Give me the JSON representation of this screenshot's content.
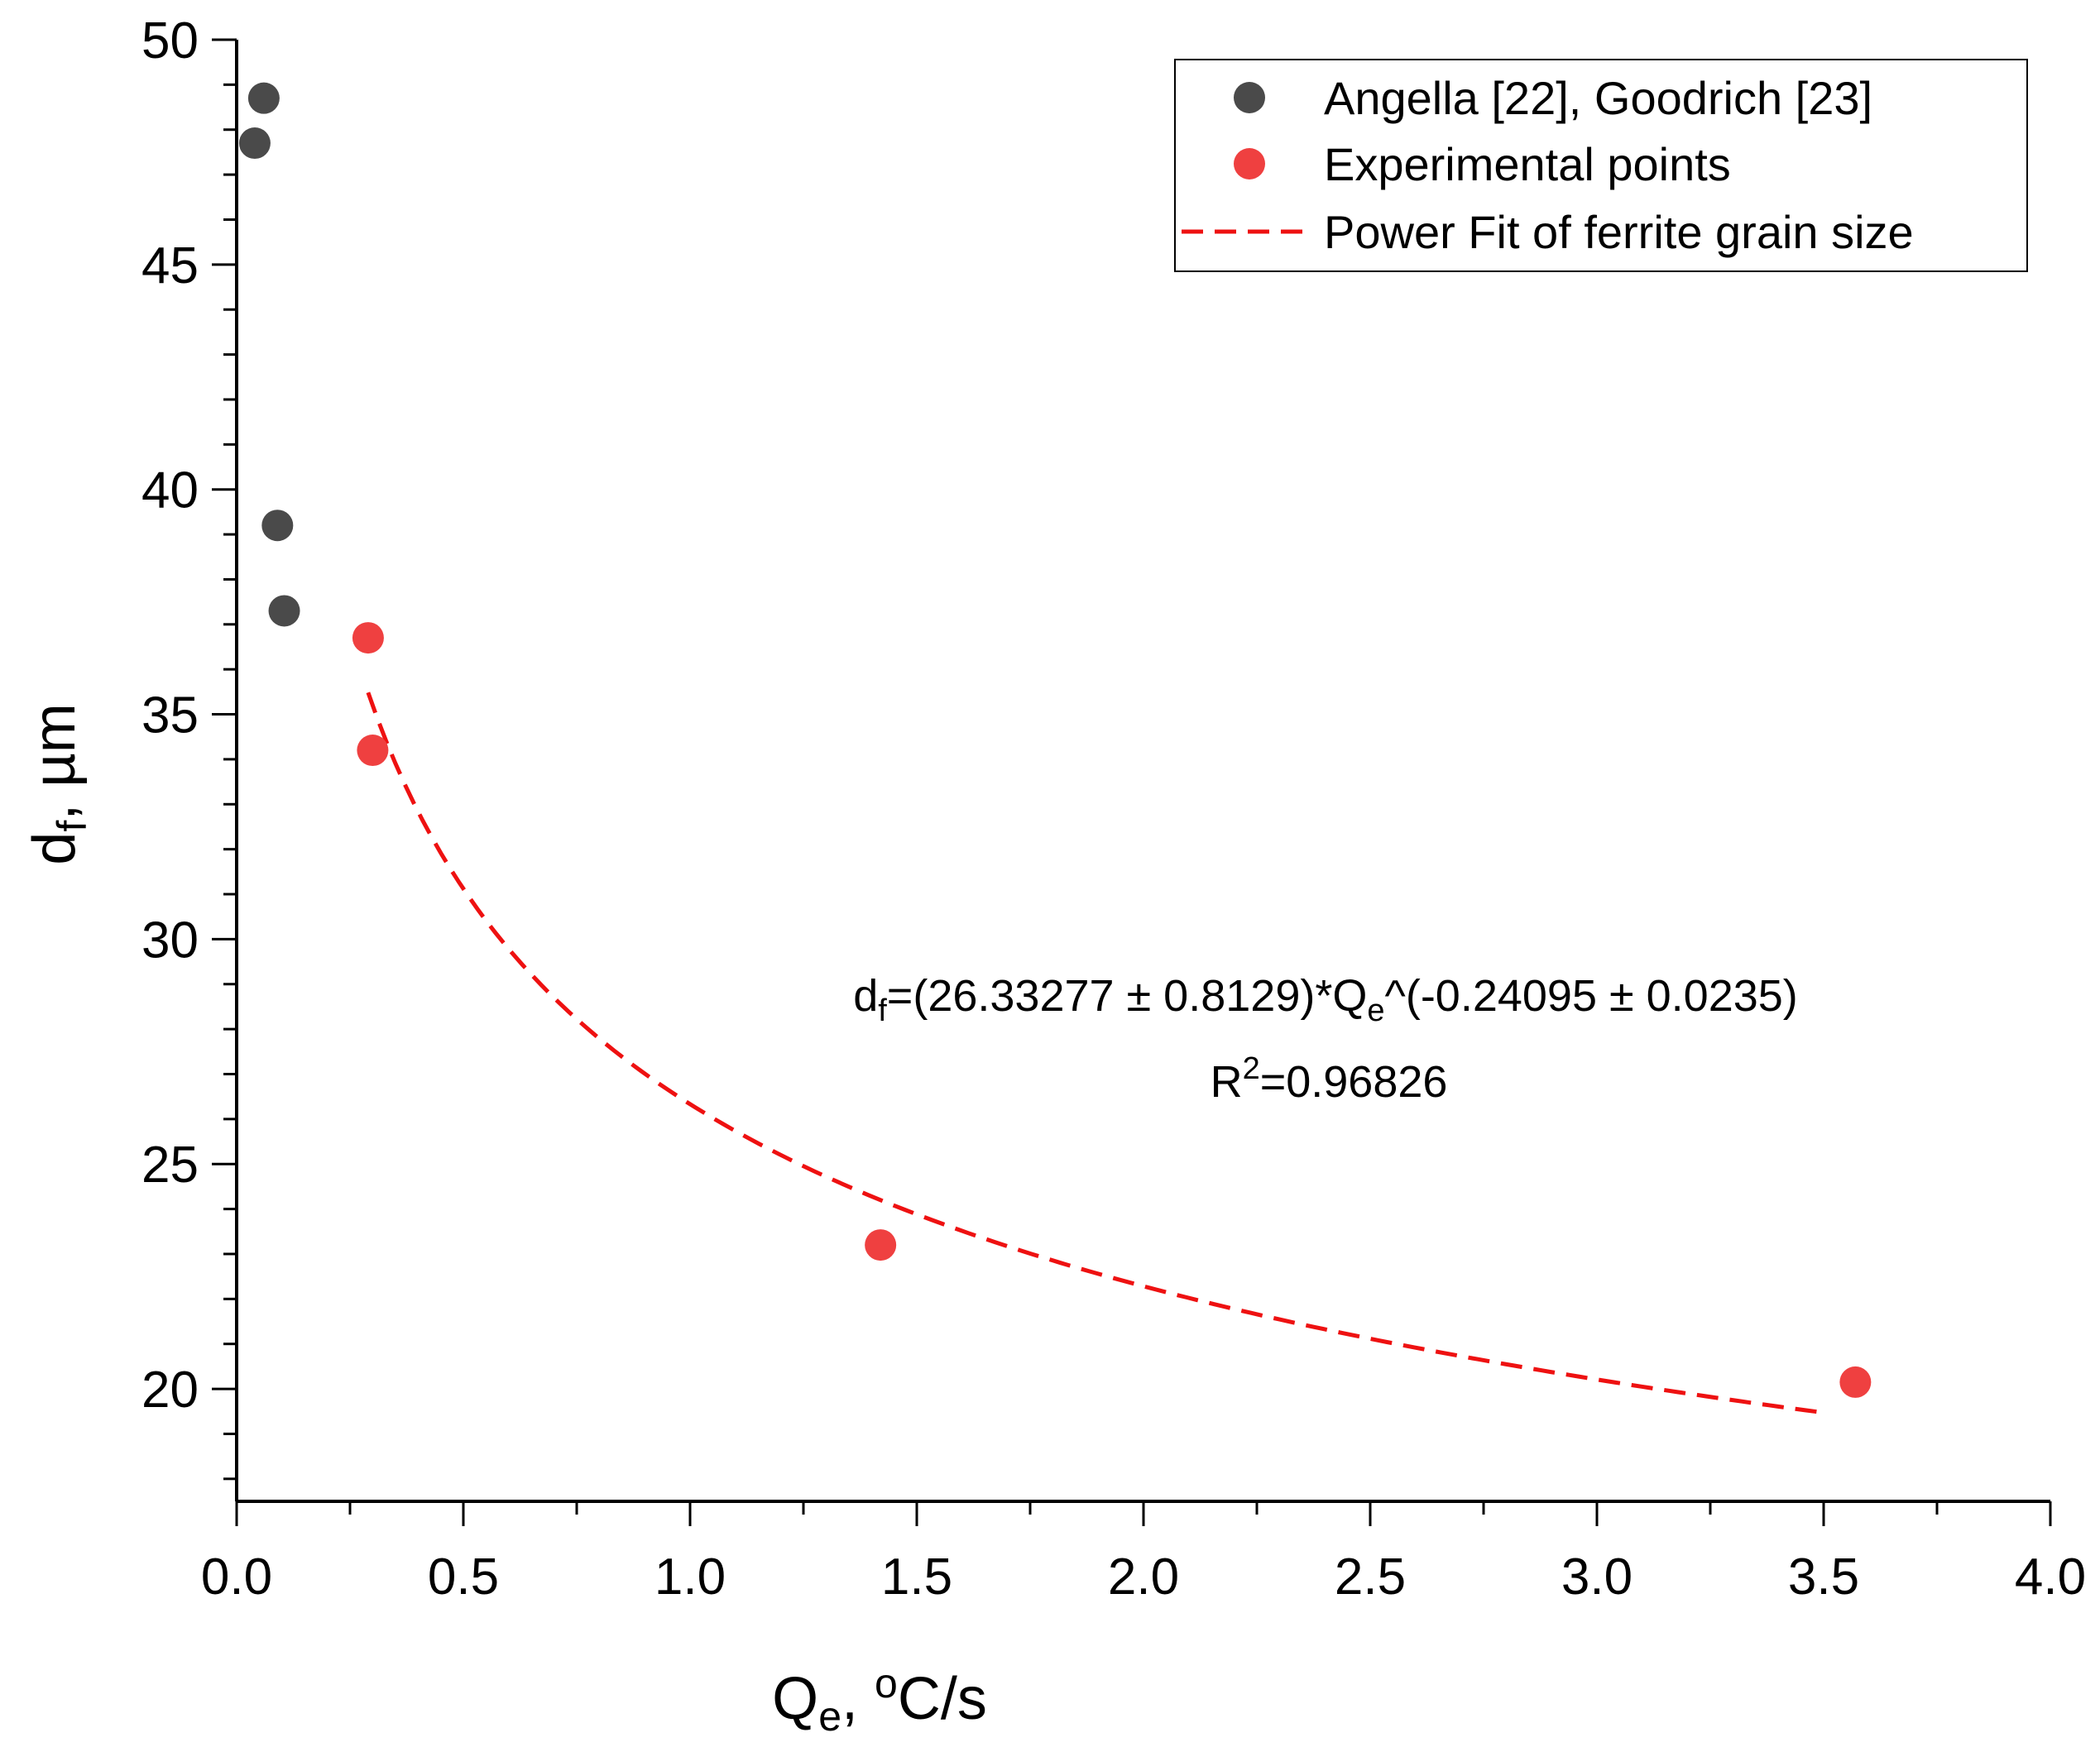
{
  "chart_data": {
    "type": "scatter",
    "xlabel": {
      "main": "Q",
      "sub": "e",
      "rest": ", ",
      "sup": "o",
      "tail": "C/s"
    },
    "ylabel": {
      "main": "d",
      "sub": "f",
      "rest": ", µm"
    },
    "xlim": [
      0,
      4.0
    ],
    "ylim": [
      17.5,
      50
    ],
    "x_ticks": [
      {
        "value": 0.0,
        "label": "0.0"
      },
      {
        "value": 0.5,
        "label": "0.5"
      },
      {
        "value": 1.0,
        "label": "1.0"
      },
      {
        "value": 1.5,
        "label": "1.5"
      },
      {
        "value": 2.0,
        "label": "2.0"
      },
      {
        "value": 2.5,
        "label": "2.5"
      },
      {
        "value": 3.0,
        "label": "3.0"
      },
      {
        "value": 3.5,
        "label": "3.5"
      },
      {
        "value": 4.0,
        "label": "4.0"
      }
    ],
    "y_ticks": [
      {
        "value": 20,
        "label": "20"
      },
      {
        "value": 25,
        "label": "25"
      },
      {
        "value": 30,
        "label": "30"
      },
      {
        "value": 35,
        "label": "35"
      },
      {
        "value": 40,
        "label": "40"
      },
      {
        "value": 45,
        "label": "45"
      },
      {
        "value": 50,
        "label": "50"
      }
    ],
    "series": [
      {
        "name": "Angella [22], Goodrich [23]",
        "kind": "scatter",
        "color": "#4a4a4a",
        "points": [
          {
            "x": 0.04,
            "y": 47.7
          },
          {
            "x": 0.06,
            "y": 48.7
          },
          {
            "x": 0.09,
            "y": 39.2
          },
          {
            "x": 0.105,
            "y": 37.3
          }
        ]
      },
      {
        "name": "Experimental points",
        "kind": "scatter",
        "color": "#ef4040",
        "points": [
          {
            "x": 0.29,
            "y": 36.7
          },
          {
            "x": 0.3,
            "y": 34.2
          },
          {
            "x": 1.42,
            "y": 23.2
          },
          {
            "x": 3.57,
            "y": 20.15
          }
        ]
      },
      {
        "name": "Power Fit of ferrite grain size",
        "kind": "fit-line",
        "color": "#ee1111",
        "model": {
          "a": 26.33277,
          "b": -0.24095,
          "x_from": 0.29,
          "x_to": 3.5
        }
      }
    ],
    "annotation": {
      "eq_d": "d",
      "eq_f": "f",
      "eq_body1": "=(26.33277 ± 0.8129)*Q",
      "eq_e": "e",
      "eq_body2": "^(-0.24095 ± 0.0235)",
      "r_main": "R",
      "r_sup": "2",
      "r_tail": "=0.96826"
    },
    "legend_position": "top-right",
    "grid": false
  }
}
